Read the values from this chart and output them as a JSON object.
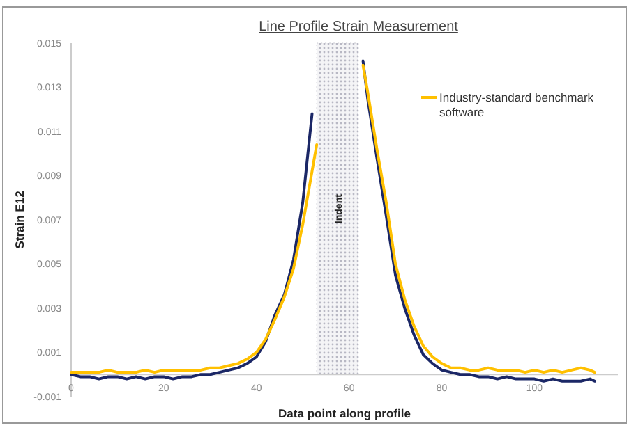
{
  "chart_data": {
    "type": "line",
    "title": "Line Profile Strain Measurement",
    "xlabel": "Data point along profile",
    "ylabel": "Strain E12",
    "xlim": [
      0,
      118
    ],
    "xticks": [
      0,
      20,
      40,
      60,
      80,
      100
    ],
    "ylim": [
      -0.001,
      0.015
    ],
    "yticks": [
      -0.001,
      0.001,
      0.003,
      0.005,
      0.007,
      0.009,
      0.011,
      0.013,
      0.015
    ],
    "grid": false,
    "legend": "top right",
    "marker": "none",
    "line_style": "solid",
    "bands": [
      {
        "axis": "x",
        "from": 53,
        "to": 62,
        "label": "Indent",
        "color": "#c8c8d0"
      }
    ],
    "series": [
      {
        "color": "#1b2766",
        "x": [
          0,
          2,
          4,
          6,
          8,
          10,
          12,
          14,
          16,
          18,
          20,
          22,
          24,
          26,
          28,
          30,
          32,
          34,
          36,
          38,
          40,
          42,
          44,
          46,
          48,
          50,
          52,
          58,
          63,
          64,
          66,
          68,
          70,
          72,
          74,
          76,
          78,
          80,
          82,
          84,
          86,
          88,
          90,
          92,
          94,
          96,
          98,
          100,
          102,
          104,
          106,
          108,
          110,
          112,
          113
        ],
        "values": [
          0,
          -0.0001,
          -0.0001,
          -0.0002,
          -0.0001,
          -0.0001,
          -0.0002,
          -0.0001,
          -0.0002,
          -0.0001,
          -0.0001,
          -0.0002,
          -0.0001,
          -0.0001,
          0,
          0,
          0.0001,
          0.0002,
          0.0003,
          0.0005,
          0.0008,
          0.0015,
          0.0027,
          0.0036,
          0.0052,
          0.0078,
          0.0118,
          null,
          0.0142,
          0.0125,
          0.0098,
          0.0072,
          0.0045,
          0.003,
          0.0018,
          0.0009,
          0.0005,
          0.0002,
          0.0001,
          0,
          0,
          -0.0001,
          -0.0001,
          -0.0002,
          -0.0001,
          -0.0002,
          -0.0002,
          -0.0002,
          -0.0003,
          -0.0002,
          -0.0003,
          -0.0003,
          -0.0003,
          -0.0002,
          -0.0003
        ]
      },
      {
        "name": "Industry-standard benchmark software",
        "color": "#ffc000",
        "x": [
          0,
          2,
          4,
          6,
          8,
          10,
          12,
          14,
          16,
          18,
          20,
          22,
          24,
          26,
          28,
          30,
          32,
          34,
          36,
          38,
          40,
          42,
          44,
          46,
          48,
          50,
          52,
          53,
          58,
          63,
          64,
          66,
          68,
          70,
          72,
          74,
          76,
          78,
          80,
          82,
          84,
          86,
          88,
          90,
          92,
          94,
          96,
          98,
          100,
          102,
          104,
          106,
          108,
          110,
          112,
          113
        ],
        "values": [
          0.0001,
          0.0001,
          0.0001,
          0.0001,
          0.0002,
          0.0001,
          0.0001,
          0.0001,
          0.0002,
          0.0001,
          0.0002,
          0.0002,
          0.0002,
          0.0002,
          0.0002,
          0.0003,
          0.0003,
          0.0004,
          0.0005,
          0.0007,
          0.001,
          0.0016,
          0.0025,
          0.0035,
          0.0048,
          0.0068,
          0.0092,
          0.0104,
          null,
          0.014,
          0.0128,
          0.0102,
          0.0078,
          0.005,
          0.0034,
          0.0022,
          0.0013,
          0.0008,
          0.0005,
          0.0003,
          0.0003,
          0.0002,
          0.0002,
          0.0003,
          0.0002,
          0.0002,
          0.0002,
          0.0001,
          0.0002,
          0.0001,
          0.0002,
          0.0001,
          0.0002,
          0.0003,
          0.0002,
          0.0001
        ]
      }
    ]
  }
}
